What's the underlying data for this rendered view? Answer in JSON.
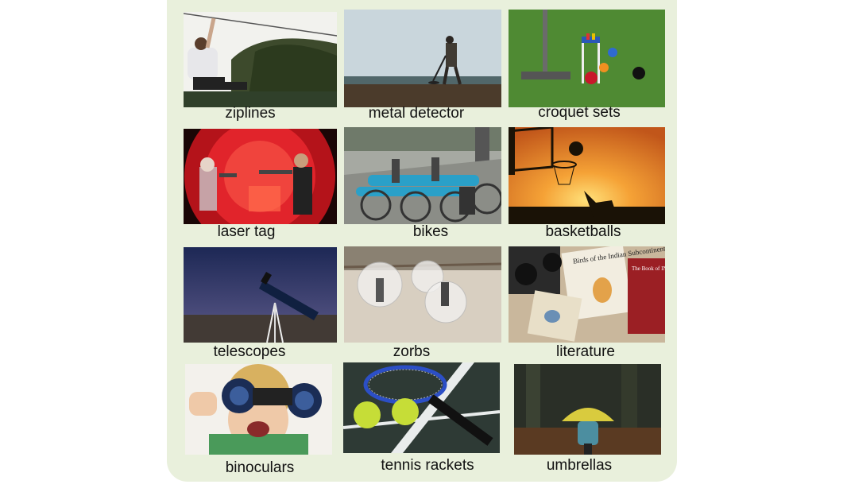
{
  "items": [
    {
      "label": "ziplines"
    },
    {
      "label": "metal detector"
    },
    {
      "label": "croquet sets"
    },
    {
      "label": "laser tag"
    },
    {
      "label": "bikes"
    },
    {
      "label": "basketballs"
    },
    {
      "label": "telescopes"
    },
    {
      "label": "zorbs"
    },
    {
      "label": "literature"
    },
    {
      "label": "binoculars"
    },
    {
      "label": "tennis rackets"
    },
    {
      "label": "umbrellas"
    }
  ],
  "book_text": {
    "birds_title": "Birds of the Indian Subcontinent",
    "book_of_indian_birds": "The Book of INDIAN BIRDS"
  }
}
